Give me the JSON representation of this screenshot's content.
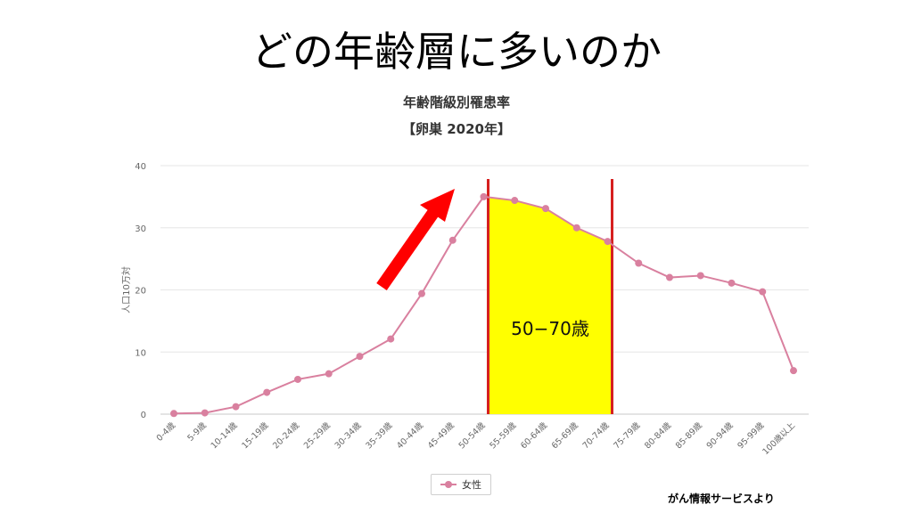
{
  "slide": {
    "title": "どの年齢層に多いのか",
    "source": "がん情報サービスより"
  },
  "chart_data": {
    "type": "line",
    "title": "年齢階級別罹患率",
    "subtitle": "【卵巣 2020年】",
    "ylabel": "人口10万対",
    "xlabel": "",
    "ylim": [
      0,
      40
    ],
    "yticks": [
      0,
      10,
      20,
      30,
      40
    ],
    "grid": true,
    "legend_position": "bottom",
    "categories": [
      "0-4歳",
      "5-9歳",
      "10-14歳",
      "15-19歳",
      "20-24歳",
      "25-29歳",
      "30-34歳",
      "35-39歳",
      "40-44歳",
      "45-49歳",
      "50-54歳",
      "55-59歳",
      "60-64歳",
      "65-69歳",
      "70-74歳",
      "75-79歳",
      "80-84歳",
      "85-89歳",
      "90-94歳",
      "95-99歳",
      "100歳以上"
    ],
    "series": [
      {
        "name": "女性",
        "color": "#d9809f",
        "values": [
          0.1,
          0.2,
          1.2,
          3.5,
          5.6,
          6.5,
          9.3,
          12.1,
          19.4,
          28.0,
          35.0,
          34.4,
          33.1,
          30.0,
          27.8,
          24.3,
          22.0,
          22.3,
          21.1,
          19.7,
          7.0
        ]
      }
    ],
    "highlight": {
      "label": "50−70歳",
      "from_index": 10,
      "to_index": 14,
      "fill_color": "#ffff00",
      "border_color": "#d62020"
    },
    "arrow": {
      "icon": "red-arrow-icon",
      "color": "#ff0000",
      "direction": "up-right"
    }
  }
}
